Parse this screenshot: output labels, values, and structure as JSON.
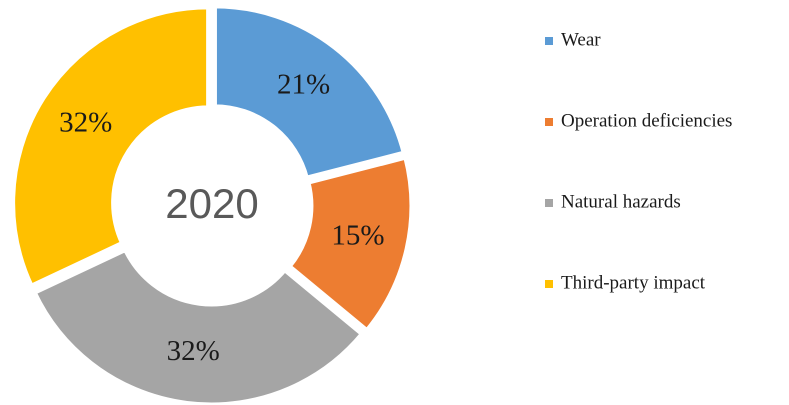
{
  "chart_data": {
    "type": "donut",
    "center_label": "2020",
    "categories": [
      "Wear",
      "Operation deficiencies",
      "Natural hazards",
      "Third-party impact"
    ],
    "values": [
      21,
      15,
      32,
      32
    ],
    "value_labels": [
      "21%",
      "15%",
      "32%",
      "32%"
    ],
    "colors": [
      "#5b9bd5",
      "#ed7d31",
      "#a5a5a5",
      "#ffc000"
    ],
    "legend": "right"
  }
}
